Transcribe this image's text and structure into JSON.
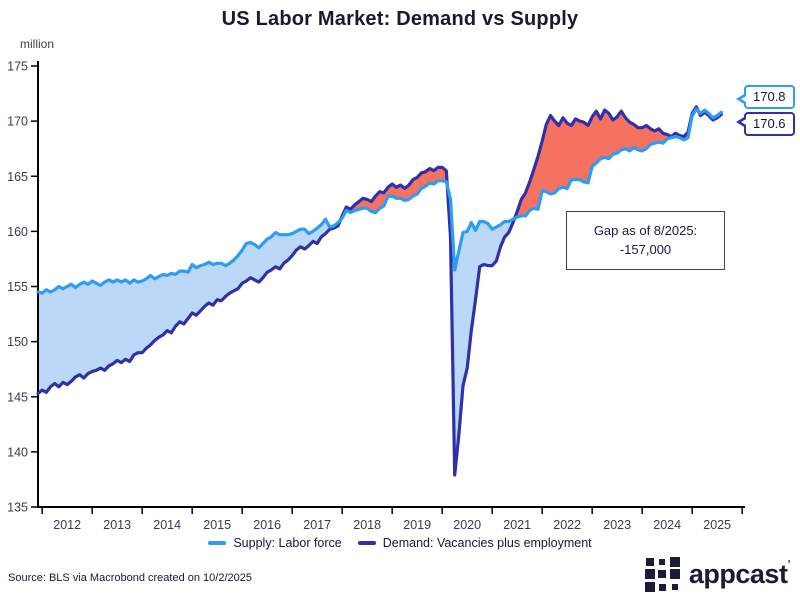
{
  "title": "US Labor Market: Demand vs Supply",
  "y_axis": {
    "unit": "million"
  },
  "callouts": {
    "supply": "170.8",
    "demand": "170.6"
  },
  "annotation": {
    "line1": "Gap as of 8/2025:",
    "line2": "-157,000"
  },
  "legend": {
    "items": [
      {
        "label": "Supply: Labor force",
        "color": "#2D9CF4"
      },
      {
        "label": "Demand: Vacancies plus employment",
        "color": "#3030A8"
      }
    ]
  },
  "footer": {
    "source": "Source: BLS via Macrobond created on 10/2/2025",
    "logo_text": "appcast"
  },
  "colors": {
    "supply_line": "#2D9CF4",
    "demand_line": "#3030A8",
    "supply_gap_fill": "#BBD8F8",
    "demand_gap_fill": "#F4725F",
    "axis": "#000000",
    "tick_text": "#3a3a55",
    "title_text": "#191932"
  },
  "chart_data": {
    "type": "line",
    "title": "US Labor Market: Demand vs Supply",
    "ylabel": "million",
    "x_start_year": 2011,
    "x_start_month": 12,
    "interval": "monthly",
    "ylim": [
      135,
      175
    ],
    "y_ticks": [
      135,
      140,
      145,
      150,
      155,
      160,
      165,
      170,
      175
    ],
    "x_tick_years": [
      2012,
      2013,
      2014,
      2015,
      2016,
      2017,
      2018,
      2019,
      2020,
      2021,
      2022,
      2023,
      2024,
      2025
    ],
    "legend_position": "bottom",
    "grid": false,
    "fill_between": "blue where supply above demand, salmon where demand above supply",
    "series": [
      {
        "name": "Supply: Labor force",
        "values": [
          154.5,
          154.4,
          154.7,
          154.5,
          154.7,
          155.0,
          154.8,
          155.0,
          155.2,
          154.9,
          155.2,
          155.4,
          155.2,
          155.5,
          155.3,
          155.1,
          155.4,
          155.6,
          155.4,
          155.6,
          155.4,
          155.6,
          155.3,
          155.6,
          155.4,
          155.5,
          155.7,
          156.0,
          155.7,
          155.9,
          156.1,
          156.0,
          156.2,
          156.1,
          156.4,
          156.4,
          156.3,
          157.0,
          156.7,
          156.9,
          157.0,
          157.2,
          157.0,
          157.1,
          157.1,
          156.9,
          157.1,
          157.4,
          157.8,
          158.3,
          158.9,
          159.0,
          158.8,
          158.5,
          158.9,
          159.3,
          159.5,
          159.9,
          159.7,
          159.7,
          159.7,
          159.8,
          160.0,
          160.2,
          160.2,
          159.8,
          160.0,
          160.3,
          160.6,
          161.1,
          160.4,
          160.5,
          160.8,
          161.2,
          161.9,
          161.7,
          161.9,
          162.0,
          162.1,
          162.1,
          161.8,
          161.7,
          162.1,
          162.3,
          163.2,
          163.2,
          163.0,
          163.0,
          162.8,
          162.9,
          163.2,
          163.4,
          163.9,
          164.1,
          164.4,
          164.3,
          164.6,
          164.6,
          164.5,
          162.9,
          156.5,
          158.2,
          159.9,
          160.0,
          160.8,
          160.1,
          160.9,
          160.9,
          160.7,
          160.2,
          160.4,
          160.6,
          160.9,
          160.9,
          161.1,
          161.3,
          161.4,
          161.4,
          161.9,
          162.1,
          162.0,
          163.7,
          163.6,
          163.4,
          163.5,
          163.9,
          164.0,
          163.9,
          164.7,
          164.7,
          164.7,
          164.5,
          164.4,
          165.9,
          166.2,
          166.6,
          166.7,
          166.6,
          167.0,
          167.1,
          167.4,
          167.5,
          167.3,
          167.6,
          167.4,
          167.3,
          167.5,
          167.9,
          168.0,
          168.1,
          168.0,
          168.4,
          168.5,
          168.6,
          168.5,
          168.3,
          168.5,
          170.5,
          171.1,
          170.7,
          171.0,
          170.7,
          170.3,
          170.5,
          170.8
        ]
      },
      {
        "name": "Demand: Vacancies plus employment",
        "values": [
          145.3,
          145.6,
          145.4,
          145.9,
          146.2,
          145.9,
          146.3,
          146.1,
          146.4,
          146.8,
          147.0,
          146.7,
          147.1,
          147.3,
          147.4,
          147.6,
          147.4,
          147.8,
          148.0,
          148.3,
          148.1,
          148.4,
          148.2,
          148.8,
          149.0,
          149.0,
          149.4,
          149.7,
          150.1,
          150.4,
          150.6,
          151.0,
          150.8,
          151.4,
          151.8,
          151.6,
          152.1,
          152.6,
          152.4,
          152.8,
          153.2,
          153.5,
          153.3,
          153.8,
          153.7,
          154.1,
          154.4,
          154.6,
          154.8,
          155.3,
          155.5,
          155.8,
          155.6,
          155.4,
          155.8,
          156.3,
          156.5,
          156.8,
          156.6,
          157.1,
          157.4,
          157.8,
          158.3,
          158.6,
          158.4,
          158.7,
          159.1,
          158.9,
          159.5,
          159.8,
          160.2,
          160.3,
          160.5,
          161.4,
          162.2,
          162.0,
          162.4,
          162.7,
          163.0,
          162.9,
          162.7,
          163.2,
          163.6,
          163.5,
          164.0,
          164.3,
          164.0,
          164.2,
          163.9,
          164.2,
          164.7,
          164.9,
          165.3,
          165.4,
          165.7,
          165.5,
          165.8,
          165.8,
          165.5,
          159.5,
          137.9,
          141.5,
          146.0,
          147.6,
          151.0,
          153.8,
          156.8,
          157.0,
          156.9,
          156.9,
          157.3,
          158.6,
          159.5,
          159.9,
          160.8,
          161.8,
          162.9,
          163.5,
          164.5,
          165.6,
          166.8,
          168.2,
          169.7,
          170.5,
          170.0,
          169.6,
          170.3,
          169.8,
          169.6,
          170.2,
          170.0,
          169.9,
          169.6,
          170.4,
          170.9,
          170.2,
          171.0,
          170.7,
          170.1,
          170.4,
          170.9,
          170.3,
          169.9,
          169.7,
          169.4,
          169.4,
          169.6,
          169.3,
          169.1,
          169.3,
          168.9,
          168.8,
          168.6,
          168.9,
          168.7,
          168.6,
          169.0,
          170.7,
          171.3,
          170.5,
          170.8,
          170.5,
          170.1,
          170.3,
          170.6
        ]
      }
    ],
    "last_values": {
      "supply": 170.8,
      "demand": 170.6
    },
    "annotation_text": "Gap as of 8/2025: -157,000"
  }
}
